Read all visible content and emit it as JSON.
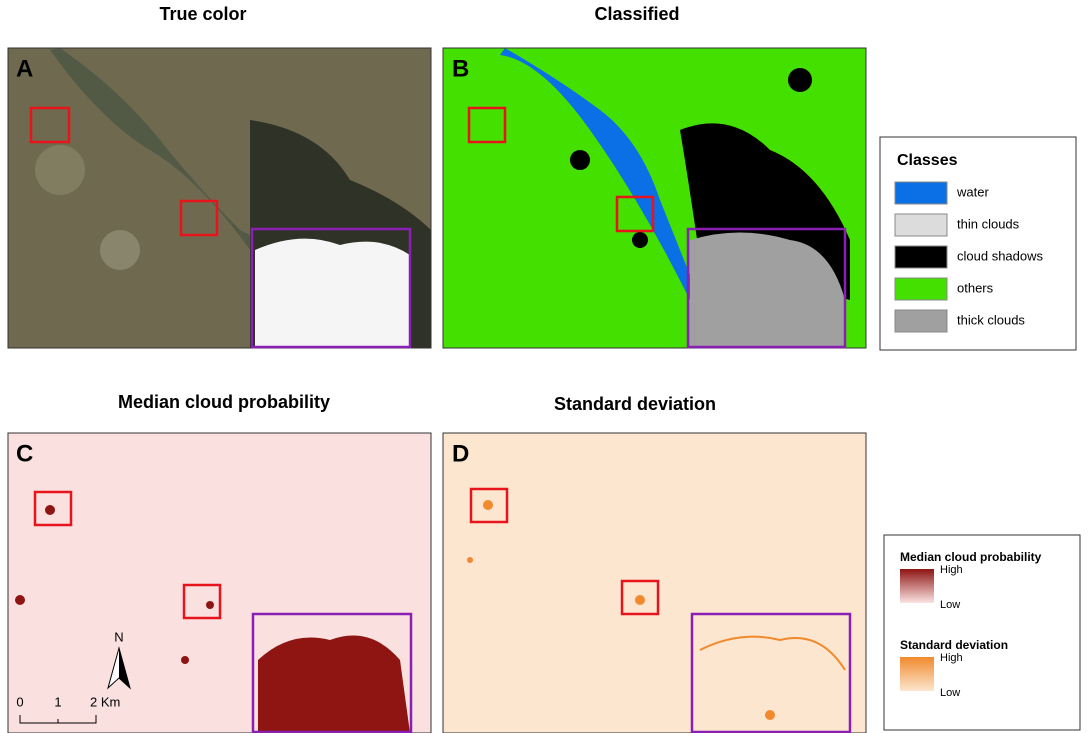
{
  "panels": [
    {
      "title": "True color",
      "letter": "A"
    },
    {
      "title": "Classified",
      "letter": "B"
    },
    {
      "title": "Median cloud probability",
      "letter": "C"
    },
    {
      "title": "Standard deviation",
      "letter": "D"
    }
  ],
  "classes_legend": {
    "title": "Classes",
    "items": [
      {
        "label": "water",
        "color": "#0b6fe6"
      },
      {
        "label": "thin clouds",
        "color": "#dcdcdc"
      },
      {
        "label": "cloud shadows",
        "color": "#000000"
      },
      {
        "label": "others",
        "color": "#44e000"
      },
      {
        "label": "thick clouds",
        "color": "#a0a0a0"
      }
    ]
  },
  "gradient_legend": [
    {
      "title": "Median cloud probability",
      "high": "High",
      "low": "Low",
      "colors": [
        "#8e1512",
        "#fbe3e3"
      ]
    },
    {
      "title": "Standard deviation",
      "high": "High",
      "low": "Low",
      "colors": [
        "#f08a2c",
        "#fde6cf"
      ]
    }
  ],
  "scale_bar": {
    "labels": [
      "0",
      "1",
      "2 Km"
    ]
  },
  "north_arrow": "N"
}
